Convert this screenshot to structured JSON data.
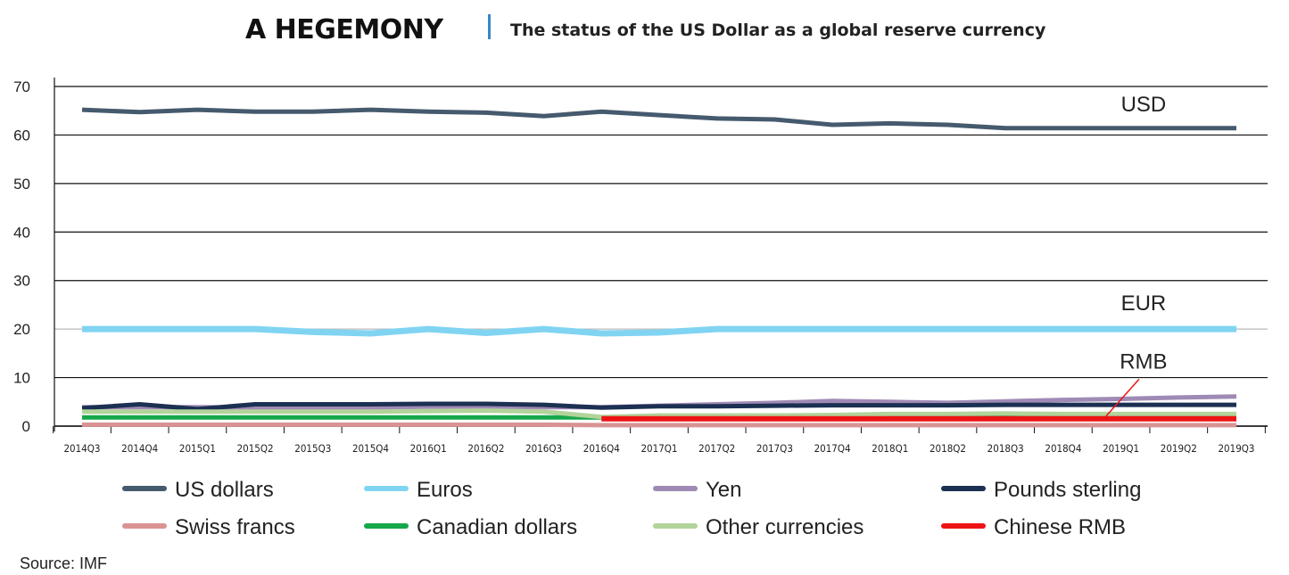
{
  "header": {
    "title": "A HEGEMONY",
    "subtitle": "The status of the US Dollar as a global reserve currency"
  },
  "source": "Source: IMF",
  "chart_data": {
    "type": "line",
    "title": "The status of the US Dollar as a global reserve currency",
    "xlabel": "",
    "ylabel": "",
    "ylim": [
      0,
      70
    ],
    "yticks": [
      0,
      10,
      20,
      30,
      40,
      50,
      60,
      70
    ],
    "grid": true,
    "legend_position": "bottom",
    "categories": [
      "2014Q3",
      "2014Q4",
      "2015Q1",
      "2015Q2",
      "2015Q3",
      "2015Q4",
      "2016Q1",
      "2016Q2",
      "2016Q3",
      "2016Q4",
      "2017Q1",
      "2017Q2",
      "2017Q3",
      "2017Q4",
      "2018Q1",
      "2018Q2",
      "2018Q3",
      "2018Q4",
      "2019Q1",
      "2019Q2",
      "2019Q3"
    ],
    "series": [
      {
        "name": "US dollars",
        "color": "#465a6e",
        "values": [
          65.2,
          64.7,
          65.2,
          64.8,
          64.8,
          65.2,
          64.8,
          64.6,
          63.9,
          64.8,
          64.1,
          63.4,
          63.2,
          62.1,
          62.4,
          62.1,
          61.4,
          61.4,
          61.4,
          61.4,
          61.4
        ]
      },
      {
        "name": "Euros",
        "color": "#80d4f2",
        "values": [
          20.0,
          20.0,
          20.0,
          20.0,
          19.4,
          19.1,
          20.0,
          19.2,
          20.0,
          19.1,
          19.3,
          20.0,
          20.0,
          20.0,
          20.0,
          20.0,
          20.0,
          20.0,
          20.0,
          20.0,
          20.0
        ]
      },
      {
        "name": "Yen",
        "color": "#9f8ab5",
        "values": [
          3.9,
          3.9,
          3.9,
          3.8,
          3.8,
          3.8,
          4.0,
          4.0,
          3.9,
          3.9,
          4.2,
          4.5,
          4.8,
          5.2,
          5.0,
          4.8,
          5.1,
          5.4,
          5.6,
          5.9,
          6.1
        ]
      },
      {
        "name": "Pounds sterling",
        "color": "#1b3052",
        "values": [
          3.7,
          4.5,
          3.5,
          4.5,
          4.5,
          4.5,
          4.6,
          4.6,
          4.4,
          3.8,
          4.1,
          4.1,
          4.2,
          4.3,
          4.3,
          4.3,
          4.4,
          4.4,
          4.4,
          4.4,
          4.4
        ]
      },
      {
        "name": "Swiss francs",
        "color": "#d99393",
        "values": [
          0.3,
          0.3,
          0.3,
          0.3,
          0.3,
          0.3,
          0.3,
          0.3,
          0.3,
          0.2,
          0.2,
          0.2,
          0.2,
          0.2,
          0.2,
          0.2,
          0.2,
          0.2,
          0.2,
          0.2,
          0.2
        ]
      },
      {
        "name": "Canadian dollars",
        "color": "#16a84a",
        "values": [
          1.8,
          1.8,
          1.8,
          1.8,
          1.8,
          1.8,
          1.8,
          1.8,
          1.8,
          1.8,
          1.9,
          1.9,
          2.0,
          2.0,
          1.9,
          1.9,
          2.0,
          1.9,
          1.9,
          1.9,
          1.9
        ]
      },
      {
        "name": "Other currencies",
        "color": "#b2d39a",
        "values": [
          3.0,
          3.0,
          3.0,
          3.0,
          3.0,
          3.0,
          3.1,
          3.2,
          3.0,
          1.9,
          2.2,
          2.2,
          2.2,
          2.3,
          2.5,
          2.5,
          2.6,
          2.5,
          2.5,
          2.5,
          2.5
        ]
      },
      {
        "name": "Chinese RMB",
        "color": "#ee1313",
        "values": [
          null,
          null,
          null,
          null,
          null,
          null,
          null,
          null,
          null,
          1.5,
          1.5,
          1.5,
          1.5,
          1.5,
          1.5,
          1.5,
          1.5,
          1.5,
          1.5,
          1.5,
          1.5
        ]
      }
    ],
    "annotations": [
      {
        "text": "USD",
        "x": "2018Q4",
        "y": 64.5
      },
      {
        "text": "EUR",
        "x": "2018Q4",
        "y": 23.5
      },
      {
        "text": "RMB",
        "x": "2018Q4",
        "y": 11.5
      }
    ]
  }
}
